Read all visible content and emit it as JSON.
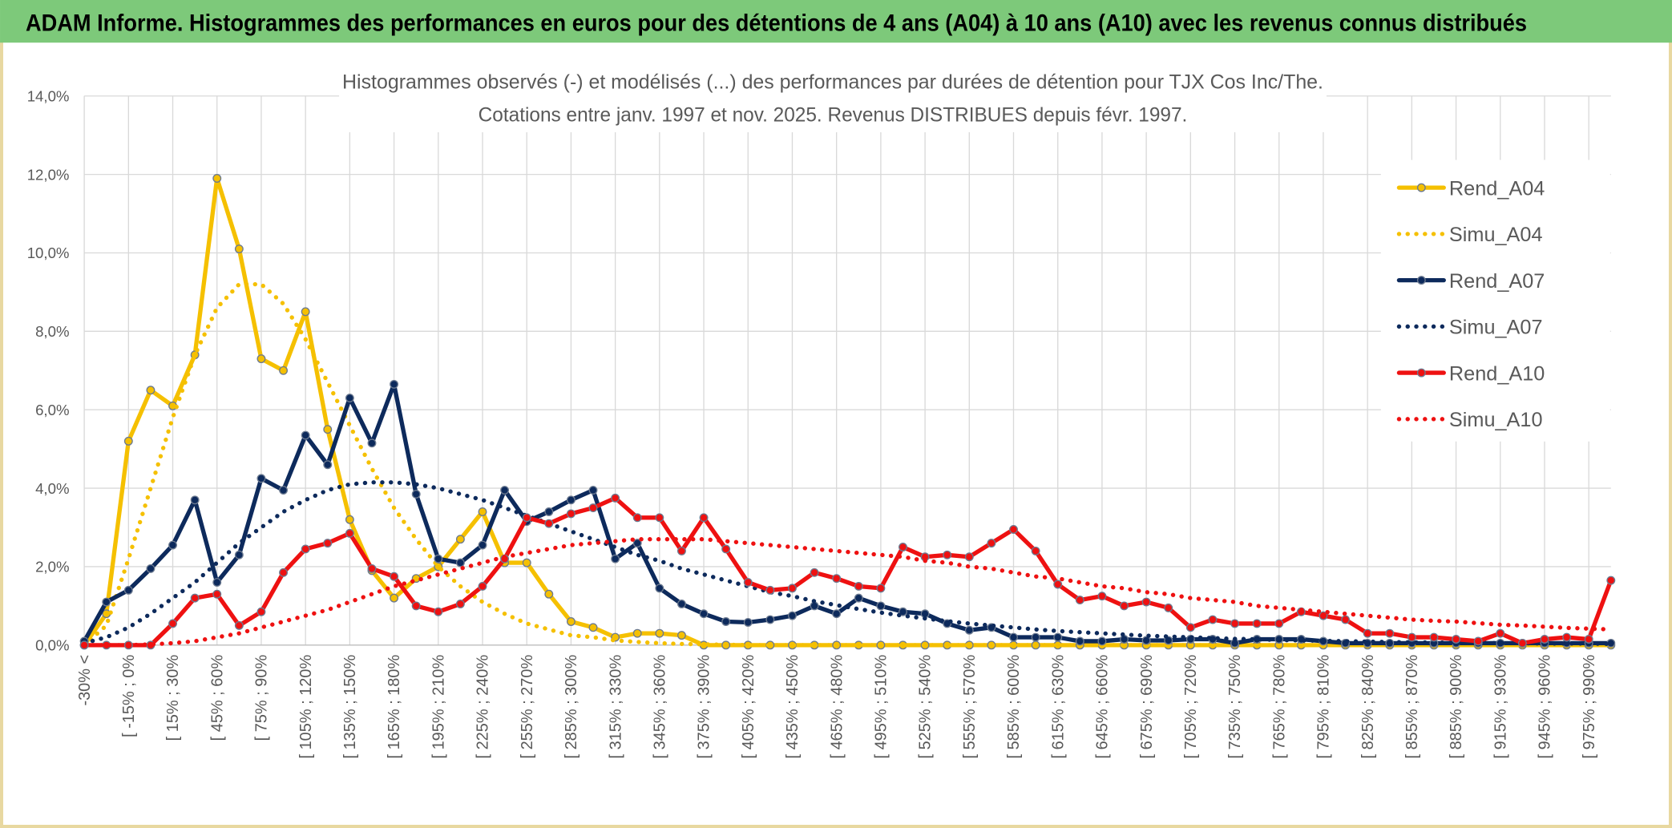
{
  "header": {
    "title": "ADAM Informe. Histogrammes des performances en euros pour des détentions de 4 ans (A04) à 10 ans (A10) avec les revenus connus distribués"
  },
  "chart_data": {
    "type": "line",
    "title": [
      "Histogrammes observés (-) et modélisés (...) des performances par durées de détention pour TJX Cos Inc/The.",
      "Cotations entre janv. 1997 et nov. 2025. Revenus DISTRIBUES depuis févr. 1997."
    ],
    "categories": [
      "-30% <",
      null,
      "[ -15% ; 0%",
      null,
      "[ 15% ; 30%",
      null,
      "[ 45% ; 60%",
      null,
      "[ 75% ; 90%",
      null,
      "[ 105% ; 120%",
      null,
      "[ 135% ; 150%",
      null,
      "[ 165% ; 180%",
      null,
      "[ 195% ; 210%",
      null,
      "[ 225% ; 240%",
      null,
      "[ 255% ; 270%",
      null,
      "[ 285% ; 300%",
      null,
      "[ 315% ; 330%",
      null,
      "[ 345% ; 360%",
      null,
      "[ 375% ; 390%",
      null,
      "[ 405% ; 420%",
      null,
      "[ 435% ; 450%",
      null,
      "[ 465% ; 480%",
      null,
      "[ 495% ; 510%",
      null,
      "[ 525% ; 540%",
      null,
      "[ 555% ; 570%",
      null,
      "[ 585% ; 600%",
      null,
      "[ 615% ; 630%",
      null,
      "[ 645% ; 660%",
      null,
      "[ 675% ; 690%",
      null,
      "[ 705% ; 720%",
      null,
      "[ 735% ; 750%",
      null,
      "[ 765% ; 780%",
      null,
      "[ 795% ; 810%",
      null,
      "[ 825% ; 840%",
      null,
      "[ 855% ; 870%",
      null,
      "[ 885% ; 900%",
      null,
      "[ 915% ; 930%",
      null,
      "[ 945% ; 960%",
      null,
      "[ 975% ; 990%",
      null
    ],
    "series": [
      {
        "name": "Rend_A04",
        "color": "#f5c000",
        "line_style": "solid",
        "markers": true,
        "values": [
          0,
          0.8,
          5.2,
          6.5,
          6.1,
          7.4,
          11.9,
          10.1,
          7.3,
          7.0,
          8.5,
          5.5,
          3.2,
          1.9,
          1.2,
          1.7,
          2.0,
          2.7,
          3.4,
          2.1,
          2.1,
          1.3,
          0.6,
          0.45,
          0.2,
          0.3,
          0.3,
          0.25,
          0,
          0,
          0,
          0,
          0,
          0,
          0,
          0,
          0,
          0,
          0,
          0,
          0,
          0,
          0,
          0,
          0,
          0,
          0,
          0,
          0,
          0,
          0,
          0,
          0,
          0,
          0,
          0,
          0,
          0,
          0,
          0,
          0,
          0,
          0,
          0,
          0,
          0,
          0,
          0,
          0,
          0
        ]
      },
      {
        "name": "Simu_A04",
        "color": "#f5c000",
        "line_style": "dotted",
        "markers": false,
        "values": [
          0,
          0.5,
          2.2,
          4.0,
          5.8,
          7.4,
          8.6,
          9.2,
          9.2,
          8.7,
          7.8,
          6.7,
          5.6,
          4.5,
          3.5,
          2.7,
          2.0,
          1.5,
          1.1,
          0.8,
          0.55,
          0.4,
          0.25,
          0.2,
          0.12,
          0.08,
          0.05,
          0.03,
          0.02,
          0.01,
          0,
          0,
          0,
          0,
          0,
          0,
          0,
          0,
          0,
          0,
          0,
          0,
          0,
          0,
          0,
          0,
          0,
          0,
          0,
          0,
          0,
          0,
          0,
          0,
          0,
          0,
          0,
          0,
          0,
          0,
          0,
          0,
          0,
          0,
          0,
          0,
          0,
          0,
          0,
          0
        ]
      },
      {
        "name": "Rend_A07",
        "color": "#0d2a5c",
        "line_style": "solid",
        "markers": true,
        "values": [
          0.1,
          1.1,
          1.4,
          1.95,
          2.55,
          3.7,
          1.6,
          2.3,
          4.25,
          3.95,
          5.35,
          4.6,
          6.3,
          5.15,
          6.65,
          3.85,
          2.2,
          2.1,
          2.55,
          3.95,
          3.15,
          3.4,
          3.7,
          3.95,
          2.2,
          2.6,
          1.45,
          1.05,
          0.8,
          0.6,
          0.58,
          0.65,
          0.75,
          1.0,
          0.8,
          1.2,
          1.0,
          0.85,
          0.8,
          0.55,
          0.38,
          0.45,
          0.2,
          0.2,
          0.2,
          0.1,
          0.1,
          0.15,
          0.12,
          0.12,
          0.15,
          0.15,
          0.05,
          0.15,
          0.15,
          0.15,
          0.1,
          0.05,
          0.05,
          0.05,
          0.05,
          0.05,
          0.05,
          0.05,
          0.05,
          0.05,
          0.05,
          0.05,
          0.05,
          0.05
        ]
      },
      {
        "name": "Simu_A07",
        "color": "#0d2a5c",
        "line_style": "dotted",
        "markers": false,
        "values": [
          0.05,
          0.2,
          0.45,
          0.8,
          1.2,
          1.6,
          2.1,
          2.6,
          3.0,
          3.4,
          3.7,
          3.95,
          4.1,
          4.15,
          4.15,
          4.1,
          4.0,
          3.85,
          3.7,
          3.5,
          3.3,
          3.1,
          2.9,
          2.7,
          2.5,
          2.3,
          2.15,
          1.95,
          1.8,
          1.65,
          1.5,
          1.35,
          1.25,
          1.12,
          1.02,
          0.92,
          0.83,
          0.75,
          0.68,
          0.61,
          0.55,
          0.5,
          0.45,
          0.4,
          0.36,
          0.33,
          0.3,
          0.27,
          0.24,
          0.22,
          0.2,
          0.18,
          0.16,
          0.15,
          0.13,
          0.12,
          0.11,
          0.1,
          0.09,
          0.08,
          0.07,
          0.07,
          0.06,
          0.06,
          0.05,
          0.05,
          0.04,
          0.04,
          0.04,
          0.03
        ]
      },
      {
        "name": "Rend_A10",
        "color": "#ee1111",
        "line_style": "solid",
        "markers": true,
        "values": [
          0,
          0,
          0,
          0,
          0.55,
          1.2,
          1.3,
          0.5,
          0.85,
          1.85,
          2.45,
          2.6,
          2.85,
          1.95,
          1.75,
          1.0,
          0.85,
          1.05,
          1.5,
          2.2,
          3.25,
          3.1,
          3.35,
          3.5,
          3.75,
          3.25,
          3.25,
          2.4,
          3.25,
          2.45,
          1.6,
          1.4,
          1.45,
          1.85,
          1.7,
          1.5,
          1.45,
          2.5,
          2.25,
          2.3,
          2.25,
          2.6,
          2.95,
          2.4,
          1.55,
          1.15,
          1.25,
          1.0,
          1.1,
          0.95,
          0.45,
          0.65,
          0.55,
          0.55,
          0.55,
          0.85,
          0.75,
          0.65,
          0.3,
          0.3,
          0.2,
          0.2,
          0.15,
          0.1,
          0.3,
          0.05,
          0.15,
          0.2,
          0.15,
          1.65
        ]
      },
      {
        "name": "Simu_A10",
        "color": "#ee1111",
        "line_style": "dotted",
        "markers": false,
        "values": [
          0,
          0,
          0,
          0.02,
          0.05,
          0.1,
          0.2,
          0.3,
          0.45,
          0.6,
          0.75,
          0.9,
          1.1,
          1.3,
          1.5,
          1.65,
          1.8,
          1.95,
          2.1,
          2.25,
          2.35,
          2.45,
          2.55,
          2.6,
          2.65,
          2.7,
          2.7,
          2.7,
          2.7,
          2.65,
          2.6,
          2.55,
          2.5,
          2.45,
          2.4,
          2.35,
          2.3,
          2.25,
          2.15,
          2.1,
          2.0,
          1.95,
          1.85,
          1.75,
          1.7,
          1.6,
          1.5,
          1.45,
          1.35,
          1.3,
          1.2,
          1.15,
          1.1,
          1.0,
          0.95,
          0.9,
          0.85,
          0.8,
          0.75,
          0.7,
          0.65,
          0.62,
          0.6,
          0.56,
          0.52,
          0.5,
          0.47,
          0.44,
          0.42,
          0.4
        ]
      }
    ],
    "ylim": [
      0,
      14
    ],
    "yticks": [
      {
        "value": 0,
        "label": "0,0%"
      },
      {
        "value": 2,
        "label": "2,0%"
      },
      {
        "value": 4,
        "label": "4,0%"
      },
      {
        "value": 6,
        "label": "6,0%"
      },
      {
        "value": 8,
        "label": "8,0%"
      },
      {
        "value": 10,
        "label": "10,0%"
      },
      {
        "value": 12,
        "label": "12,0%"
      },
      {
        "value": 14,
        "label": "14,0%"
      }
    ],
    "grid": true,
    "legend": "right"
  }
}
